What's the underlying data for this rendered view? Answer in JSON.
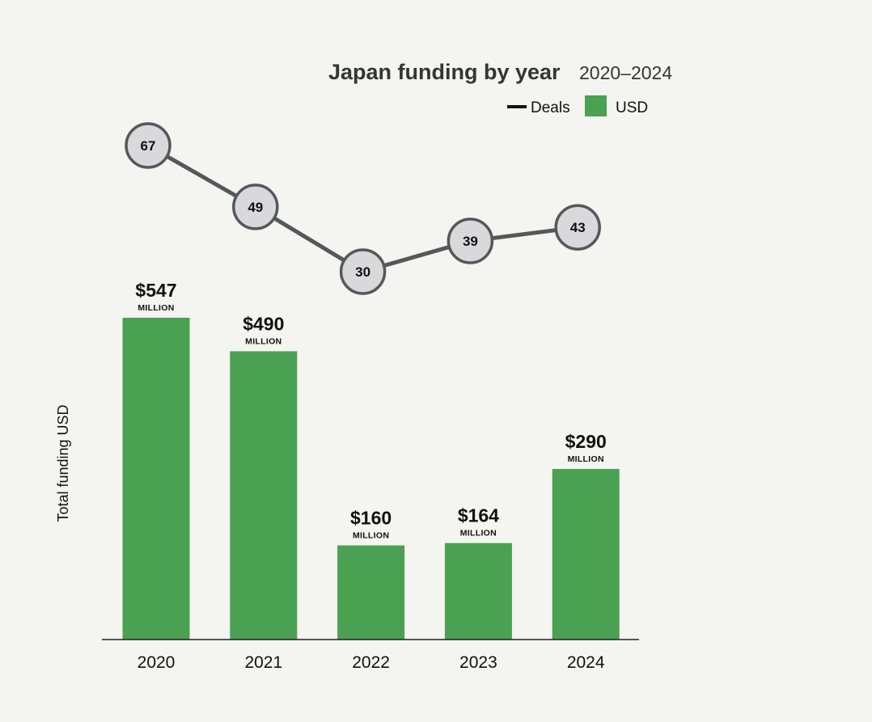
{
  "chart_data": {
    "type": "bar",
    "title": "Japan funding by year",
    "subtitle": "2020–2024",
    "ylabel": "Total funding USD",
    "xlabel": "",
    "categories": [
      "2020",
      "2021",
      "2022",
      "2023",
      "2024"
    ],
    "value_prefix": "$",
    "value_unit": "MILLION",
    "series": [
      {
        "name": "USD",
        "type": "bar",
        "color": "#4aa152",
        "values": [
          547,
          490,
          160,
          164,
          290
        ]
      },
      {
        "name": "Deals",
        "type": "line",
        "color": "#55575a",
        "values": [
          67,
          49,
          30,
          39,
          43
        ]
      }
    ],
    "legend": {
      "placement": "top-right",
      "items": [
        {
          "label": "Deals",
          "marker": "line",
          "color": "#111111"
        },
        {
          "label": "USD",
          "marker": "square",
          "color": "#4aa152"
        }
      ]
    },
    "ylim": [
      0,
      547
    ],
    "grid": false
  }
}
